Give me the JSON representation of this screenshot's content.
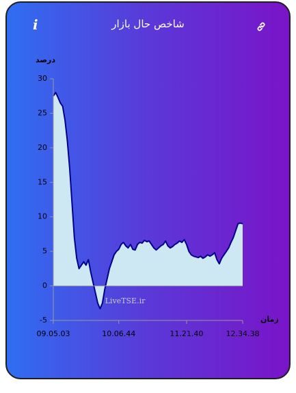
{
  "header": {
    "title": "شاخص حال بازار"
  },
  "chart_data": {
    "type": "area",
    "y_label": "درصد",
    "x_label": "زمان",
    "watermark": "LiveTSE.ir",
    "categories": [
      "09.05.03",
      null,
      null,
      null,
      null,
      null,
      null,
      null,
      null,
      null,
      null,
      null,
      null,
      null,
      null,
      null,
      null,
      null,
      null,
      null,
      null,
      null,
      null,
      null,
      null,
      null,
      null,
      null,
      "10.06.44",
      null,
      null,
      null,
      null,
      null,
      null,
      null,
      null,
      null,
      null,
      null,
      null,
      null,
      null,
      null,
      null,
      null,
      null,
      null,
      null,
      null,
      null,
      null,
      null,
      null,
      null,
      null,
      null,
      "11.21.40",
      null,
      null,
      null,
      null,
      null,
      null,
      null,
      null,
      null,
      null,
      null,
      null,
      null,
      null,
      null,
      null,
      null,
      null,
      null,
      null,
      null,
      null,
      null,
      "12.34.38"
    ],
    "values": [
      27.5,
      28,
      27.3,
      26.5,
      26,
      24,
      21,
      17,
      12,
      7,
      4,
      2.5,
      3,
      3.5,
      3,
      3.8,
      2,
      0.5,
      -1,
      -2.5,
      -3.3,
      -2.5,
      -0.5,
      1,
      2.5,
      3.5,
      4.5,
      5,
      5.3,
      6,
      6.3,
      5.8,
      5.5,
      6,
      5.3,
      5.2,
      6,
      6.3,
      6.2,
      6.6,
      6.4,
      6.5,
      6,
      5.5,
      5.2,
      5.5,
      5.8,
      6,
      6.5,
      5.8,
      5.5,
      5.7,
      6,
      6.2,
      6.5,
      6.3,
      6.7,
      6,
      5,
      4.5,
      4.3,
      4.2,
      4.1,
      4.3,
      4,
      4.2,
      4.5,
      4.3,
      4.5,
      4.8,
      3.8,
      3.2,
      4,
      4.5,
      5,
      5.5,
      6.3,
      7,
      8,
      9,
      9.1,
      9
    ],
    "color": "#00008b",
    "fill": "#cde8f2",
    "ylim": [
      -5,
      30
    ],
    "yticks": [
      -5,
      0,
      5,
      10,
      15,
      20,
      25,
      30
    ],
    "grid": false
  }
}
